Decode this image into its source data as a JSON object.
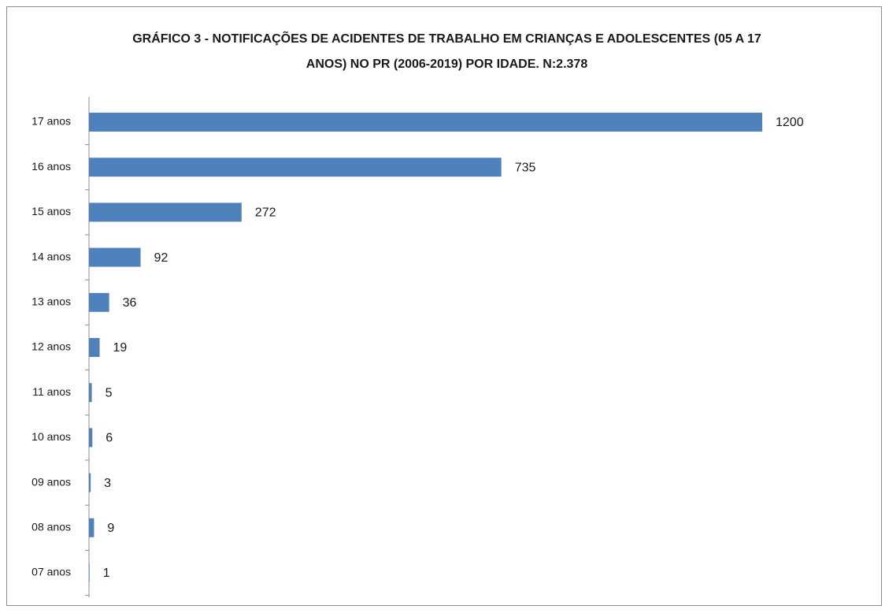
{
  "chart_data": {
    "type": "bar",
    "orientation": "horizontal",
    "title": "GRÁFICO 3 - NOTIFICAÇÕES DE ACIDENTES DE TRABALHO EM CRIANÇAS E ADOLESCENTES (05 A 17 ANOS) NO PR (2006-2019) POR IDADE. N:2.378",
    "categories": [
      "17 anos",
      "16 anos",
      "15 anos",
      "14 anos",
      "13 anos",
      "12 anos",
      "11 anos",
      "10 anos",
      "09 anos",
      "08 anos",
      "07 anos"
    ],
    "values": [
      1200,
      735,
      272,
      92,
      36,
      19,
      5,
      6,
      3,
      9,
      1
    ],
    "color": "#4f81bd"
  }
}
